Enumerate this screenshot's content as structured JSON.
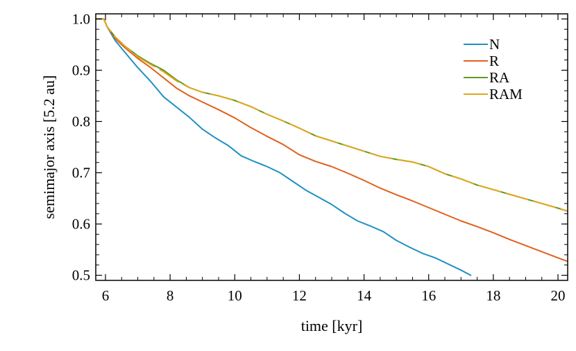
{
  "chart_data": {
    "type": "line",
    "title": "",
    "xlabel": "time [kyr]",
    "ylabel": "semimajor axis [5.2 au]",
    "xlim": [
      5.7,
      20.3
    ],
    "ylim": [
      0.49,
      1.01
    ],
    "xticks": [
      6,
      8,
      10,
      12,
      14,
      16,
      18,
      20
    ],
    "xtick_labels": [
      "6",
      "8",
      "10",
      "12",
      "14",
      "16",
      "18",
      "20"
    ],
    "yticks": [
      0.5,
      0.6,
      0.7,
      0.8,
      0.9,
      1.0
    ],
    "ytick_labels": [
      "0.5",
      "0.6",
      "0.7",
      "0.8",
      "0.9",
      "1.0"
    ],
    "grid": false,
    "legend_position": "top-right",
    "series": [
      {
        "name": "N",
        "color": "#1f8fc4",
        "x": [
          5.7,
          5.95,
          6.05,
          6.3,
          6.6,
          7.0,
          7.4,
          7.8,
          8.2,
          8.6,
          9.0,
          9.4,
          9.8,
          10.2,
          10.6,
          11.0,
          11.4,
          11.8,
          12.2,
          12.6,
          13.0,
          13.4,
          13.8,
          14.2,
          14.6,
          15.0,
          15.4,
          15.8,
          16.2,
          16.6,
          17.0,
          17.3
        ],
        "y": [
          1.0,
          1.0,
          0.985,
          0.958,
          0.935,
          0.905,
          0.878,
          0.848,
          0.828,
          0.808,
          0.785,
          0.768,
          0.753,
          0.733,
          0.722,
          0.712,
          0.7,
          0.683,
          0.666,
          0.652,
          0.638,
          0.621,
          0.606,
          0.596,
          0.585,
          0.568,
          0.555,
          0.543,
          0.534,
          0.522,
          0.51,
          0.5
        ]
      },
      {
        "name": "R",
        "color": "#e0601c",
        "x": [
          5.7,
          5.95,
          6.05,
          6.3,
          6.6,
          7.0,
          7.4,
          7.8,
          8.2,
          8.6,
          9.0,
          9.5,
          10.0,
          10.5,
          11.0,
          11.5,
          12.0,
          12.5,
          13.0,
          13.5,
          14.0,
          14.5,
          15.0,
          15.5,
          16.0,
          16.5,
          17.0,
          17.5,
          18.0,
          18.5,
          19.0,
          19.5,
          20.0,
          20.3
        ],
        "y": [
          1.0,
          1.0,
          0.985,
          0.962,
          0.944,
          0.923,
          0.905,
          0.885,
          0.865,
          0.85,
          0.838,
          0.823,
          0.807,
          0.788,
          0.771,
          0.755,
          0.735,
          0.722,
          0.712,
          0.699,
          0.685,
          0.67,
          0.657,
          0.645,
          0.632,
          0.619,
          0.606,
          0.595,
          0.583,
          0.57,
          0.558,
          0.546,
          0.534,
          0.527
        ]
      },
      {
        "name": "RA",
        "color": "#5d9a1f",
        "x": [
          5.7,
          5.95,
          6.05,
          6.3,
          6.6,
          7.0,
          7.4,
          7.8,
          8.2,
          8.6,
          9.0,
          9.5,
          10.0,
          10.5,
          11.0,
          11.5,
          12.0,
          12.5,
          13.0,
          13.5,
          14.0,
          14.5,
          15.0,
          15.5,
          16.0,
          16.5,
          17.0,
          17.5,
          18.0,
          18.5,
          19.0,
          19.5,
          20.0,
          20.3
        ],
        "y": [
          1.0,
          1.0,
          0.985,
          0.965,
          0.947,
          0.928,
          0.913,
          0.9,
          0.881,
          0.866,
          0.857,
          0.85,
          0.841,
          0.829,
          0.814,
          0.801,
          0.787,
          0.772,
          0.762,
          0.752,
          0.742,
          0.732,
          0.726,
          0.721,
          0.712,
          0.698,
          0.688,
          0.676,
          0.667,
          0.658,
          0.649,
          0.64,
          0.631,
          0.625
        ]
      },
      {
        "name": "RAM",
        "color": "#e3a51e",
        "x": [
          5.7,
          5.95,
          6.05,
          6.3,
          6.6,
          7.0,
          7.4,
          7.8,
          8.2,
          8.6,
          9.0,
          9.5,
          10.0,
          10.5,
          11.0,
          11.5,
          12.0,
          12.5,
          13.0,
          13.5,
          14.0,
          14.5,
          15.0,
          15.5,
          16.0,
          16.5,
          17.0,
          17.5,
          18.0,
          18.5,
          19.0,
          19.5,
          20.0,
          20.3
        ],
        "y": [
          1.0,
          1.0,
          0.985,
          0.965,
          0.947,
          0.926,
          0.911,
          0.897,
          0.879,
          0.866,
          0.857,
          0.85,
          0.841,
          0.829,
          0.814,
          0.801,
          0.787,
          0.772,
          0.762,
          0.752,
          0.742,
          0.732,
          0.726,
          0.721,
          0.712,
          0.698,
          0.688,
          0.676,
          0.667,
          0.658,
          0.649,
          0.64,
          0.631,
          0.625
        ],
        "dashed_over": true
      }
    ]
  }
}
